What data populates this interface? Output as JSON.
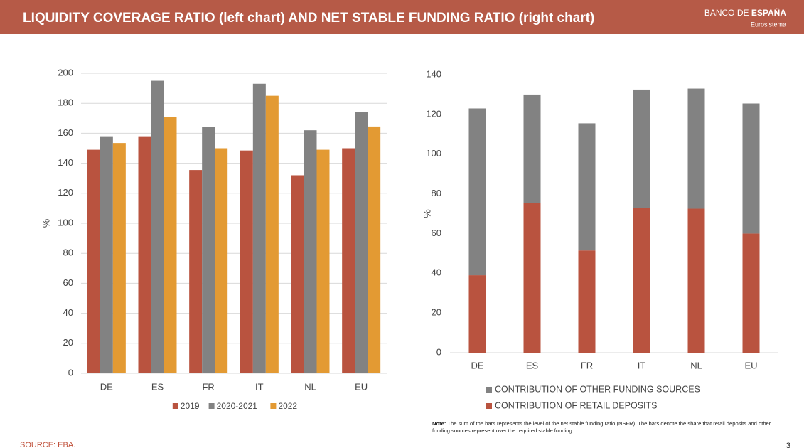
{
  "header": {
    "title": "LIQUIDITY COVERAGE RATIO (left chart) AND NET STABLE FUNDING RATIO (right chart)",
    "brand": "BANCO DE",
    "brand_bold": "ESPAÑA",
    "subtitle": "Eurosistema"
  },
  "chart_data": [
    {
      "type": "bar",
      "y_label": "%",
      "categories": [
        "DE",
        "ES",
        "FR",
        "IT",
        "NL",
        "EU"
      ],
      "series": [
        {
          "name": "2019",
          "color": "#b9533f",
          "values": [
            149,
            158,
            135.5,
            148.5,
            132,
            150
          ]
        },
        {
          "name": "2020-2021",
          "color": "#828282",
          "values": [
            158,
            195,
            164,
            193,
            162,
            174
          ]
        },
        {
          "name": "2022",
          "color": "#e39a33",
          "values": [
            153.5,
            171,
            150,
            185,
            149,
            164.5
          ]
        }
      ],
      "ylim": [
        0,
        200
      ],
      "yticks": [
        0,
        20,
        40,
        60,
        80,
        100,
        120,
        140,
        160,
        180,
        200
      ],
      "grid": true,
      "legend": "bottom"
    },
    {
      "type": "stacked_bar",
      "y_label": "%",
      "categories": [
        "DE",
        "ES",
        "FR",
        "IT",
        "NL",
        "EU"
      ],
      "series": [
        {
          "name": "CONTRIBUTION OF OTHER FUNDING SOURCES",
          "color": "#828282",
          "values": [
            84,
            54.5,
            64,
            59.5,
            60.5,
            65.5
          ]
        },
        {
          "name": "CONTRIBUTION OF RETAIL DEPOSITS",
          "color": "#b9533f",
          "values": [
            39,
            75.5,
            51.5,
            73,
            72.5,
            60
          ]
        }
      ],
      "ylim": [
        0,
        140
      ],
      "yticks": [
        0,
        20,
        40,
        60,
        80,
        100,
        120,
        140
      ],
      "grid": false,
      "legend": "bottom"
    }
  ],
  "note": {
    "label": "Note:",
    "text": "The sum of the bars represents the level of the net stable funding ratio (NSFR). The bars denote the share that retail deposits and other funding sources represent over the required stable funding."
  },
  "source": "SOURCE: EBA.",
  "page_number": "3"
}
